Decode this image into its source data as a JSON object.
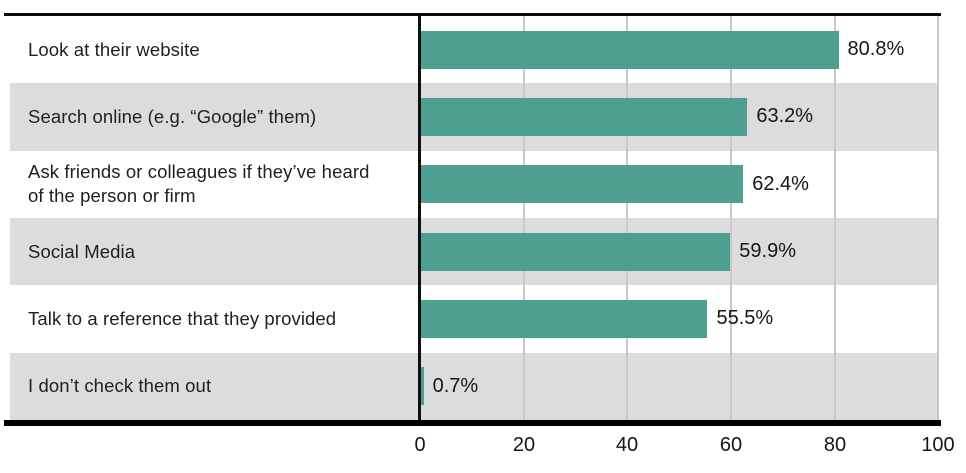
{
  "chart_data": {
    "type": "bar",
    "orientation": "horizontal",
    "title": "",
    "xlabel": "",
    "ylabel": "",
    "categories": [
      "Look at their website",
      "Search online (e.g. “Google” them)",
      "Ask friends or colleagues if they’ve heard of the person or firm",
      "Social Media",
      "Talk to a reference that they provided",
      "I don’t check them out"
    ],
    "values": [
      80.8,
      63.2,
      62.4,
      59.9,
      55.5,
      0.7
    ],
    "value_labels": [
      "80.8%",
      "63.2%",
      "62.4%",
      "59.9%",
      "55.5%",
      "0.7%"
    ],
    "xlim": [
      0,
      100
    ],
    "x_ticks": [
      0,
      20,
      40,
      60,
      80,
      100
    ],
    "x_tick_labels": [
      "0",
      "20",
      "40",
      "60",
      "80",
      "100"
    ],
    "grid": "vertical",
    "legend": "none",
    "colors": {
      "bar": "#4da08f",
      "row_alternate": "#dcdcde",
      "gridline": "#c9c9c9",
      "axis": "#000000",
      "text": "#1f1f1f"
    }
  }
}
